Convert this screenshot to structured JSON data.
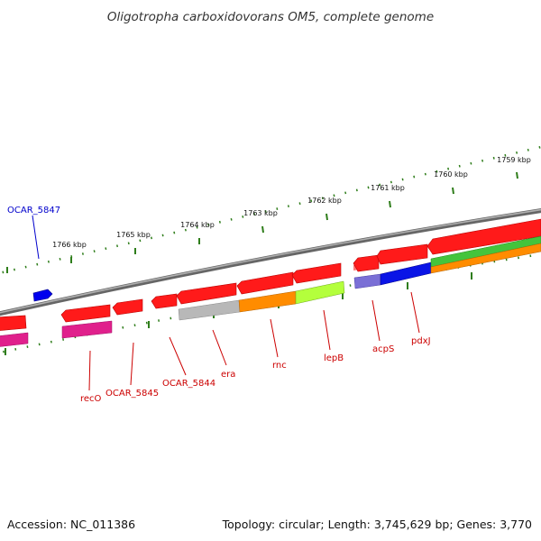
{
  "title": "Oligotropha carboxidovorans OM5, complete genome",
  "footer": {
    "accession": "Accession: NC_011386",
    "topology": "Topology: circular; Length: 3,745,629 bp; Genes: 3,770"
  },
  "colors": {
    "gene_red": "#ff1a1a",
    "backbone": "#808080",
    "tick_green": "#2e7d1a",
    "label_red": "#cc0000",
    "label_blue": "#0000cc",
    "magenta": "#e0208c",
    "gray": "#b8b8b8",
    "orange": "#ff8c00",
    "light_green": "#b4ff3c",
    "green": "#44c43c",
    "slate_blue": "#7a6fd6",
    "blue": "#0a14e6",
    "pdx_blue": "#0000ee"
  },
  "scale": {
    "unit": "kbp",
    "ticks": [
      {
        "label": "1759 kbp"
      },
      {
        "label": "1760 kbp"
      },
      {
        "label": "1761 kbp"
      },
      {
        "label": "1762 kbp"
      },
      {
        "label": "1763 kbp"
      },
      {
        "label": "1764 kbp"
      },
      {
        "label": "1765 kbp"
      },
      {
        "label": "1766 kbp"
      }
    ]
  },
  "genes": [
    {
      "name": "OCAR_5847",
      "color": "#0000cc"
    },
    {
      "name": "recO",
      "color": "#cc0000"
    },
    {
      "name": "OCAR_5845",
      "color": "#cc0000"
    },
    {
      "name": "OCAR_5844",
      "color": "#cc0000"
    },
    {
      "name": "era",
      "color": "#cc0000"
    },
    {
      "name": "rnc",
      "color": "#cc0000"
    },
    {
      "name": "lepB",
      "color": "#cc0000"
    },
    {
      "name": "acpS",
      "color": "#cc0000"
    },
    {
      "name": "pdxJ",
      "color": "#cc0000"
    }
  ]
}
